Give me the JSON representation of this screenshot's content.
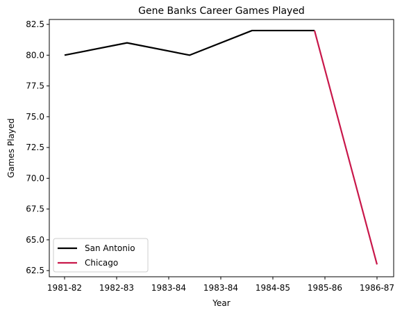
{
  "chart_data": {
    "type": "line",
    "title": "Gene Banks Career Games Played",
    "xlabel": "Year",
    "ylabel": "Games Played",
    "categories": [
      "1981-82",
      "1982-83",
      "1983-84",
      "1983-84",
      "1984-85",
      "1985-86",
      "1986-87"
    ],
    "ylim": [
      62,
      82.9
    ],
    "yticks": [
      62.5,
      65.0,
      67.5,
      70.0,
      72.5,
      75.0,
      77.5,
      80.0,
      82.5
    ],
    "grid": false,
    "legend_position": "lower-left",
    "series": [
      {
        "name": "San Antonio",
        "color": "#000000",
        "points": [
          {
            "x": 0,
            "y": 80
          },
          {
            "x": 1,
            "y": 81
          },
          {
            "x": 2,
            "y": 80
          },
          {
            "x": 3,
            "y": 82
          },
          {
            "x": 4,
            "y": 82
          }
        ]
      },
      {
        "name": "Chicago",
        "color": "#c8174a",
        "points": [
          {
            "x": 4,
            "y": 82
          },
          {
            "x": 5,
            "y": 63
          }
        ]
      }
    ]
  }
}
